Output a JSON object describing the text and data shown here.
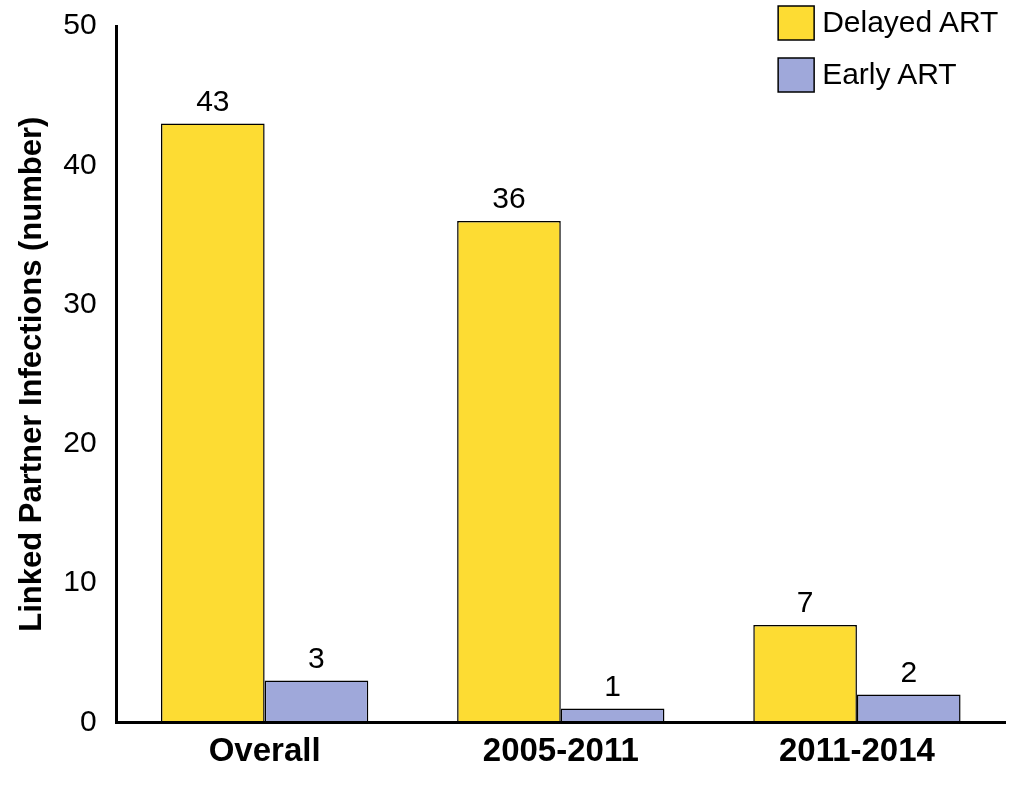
{
  "chart_data": {
    "type": "bar",
    "ylabel": "Linked Partner Infections (number)",
    "categories": [
      "Overall",
      "2005-2011",
      "2011-2014"
    ],
    "series": [
      {
        "name": "Delayed ART",
        "color": "#fddc33",
        "values": [
          43,
          36,
          7
        ]
      },
      {
        "name": "Early ART",
        "color": "#9fa8da",
        "values": [
          3,
          1,
          2
        ]
      }
    ],
    "ylim": [
      0,
      50
    ],
    "yticks": [
      0,
      10,
      20,
      30,
      40,
      50
    ],
    "grid": false,
    "legend": "top right",
    "data_labels": true
  }
}
